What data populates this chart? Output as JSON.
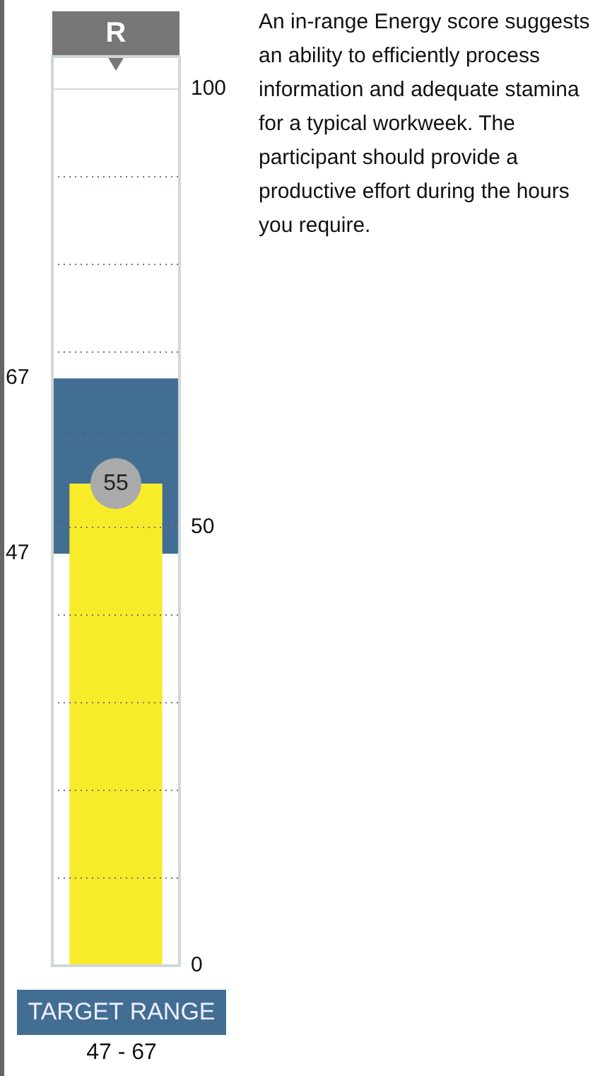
{
  "chart_data": {
    "type": "bar",
    "categories": [
      "R"
    ],
    "values": [
      55
    ],
    "color": "#f8ec2a",
    "data_labels": true,
    "ylim": [
      0,
      100
    ],
    "yticks": [
      0,
      {
        "value": 10,
        "label": null
      },
      {
        "value": 20,
        "label": null
      },
      {
        "value": 30,
        "label": null
      },
      {
        "value": 40,
        "label": null
      },
      50,
      {
        "value": 60,
        "label": null
      },
      {
        "value": 70,
        "label": null
      },
      {
        "value": 80,
        "label": null
      },
      {
        "value": 90,
        "label": null
      },
      100
    ],
    "grid": "y",
    "bands": [
      {
        "axis": "y",
        "from": 47,
        "to": 67,
        "color": "#426e93"
      }
    ],
    "annotations": [
      "An in-range Energy score suggests an ability to efficiently process information and adequate stamina for a typical workweek. The participant should provide a productive effort during the hours you require.",
      "67",
      "47",
      "TARGET RANGE",
      "47 - 67"
    ]
  }
}
